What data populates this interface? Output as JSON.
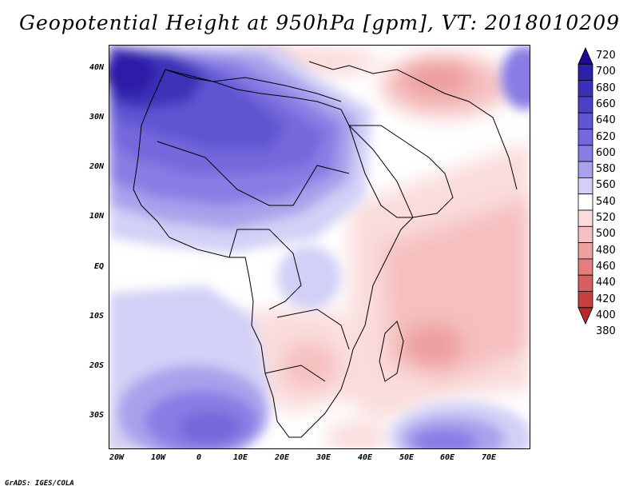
{
  "title": "Geopotential Height at 950hPa [gpm], VT: 2018010209",
  "credit": "GrADS: IGES/COLA",
  "axes": {
    "lat_labels": [
      "40N",
      "30N",
      "20N",
      "10N",
      "EQ",
      "10S",
      "20S",
      "30S"
    ],
    "lon_labels": [
      "20W",
      "10W",
      "0",
      "10E",
      "20E",
      "30E",
      "40E",
      "50E",
      "60E",
      "70E"
    ]
  },
  "colorbar": {
    "levels": [
      "720",
      "700",
      "680",
      "660",
      "640",
      "620",
      "600",
      "580",
      "560",
      "540",
      "520",
      "500",
      "480",
      "460",
      "440",
      "420",
      "400",
      "380"
    ],
    "colors": [
      "#1c0b91",
      "#2e1fa8",
      "#3c30b8",
      "#4c41c6",
      "#5f55d2",
      "#7468dc",
      "#887de4",
      "#a8a2ec",
      "#d2d0f6",
      "#ffffff",
      "#fadcdc",
      "#f6c0c0",
      "#ee9f9f",
      "#e47e7e",
      "#d85f5f",
      "#c84040",
      "#b52828"
    ]
  },
  "colors": {
    "low": "#b52828",
    "neutral": "#ffffff",
    "high": "#1c0b91",
    "coast": "#000000"
  }
}
